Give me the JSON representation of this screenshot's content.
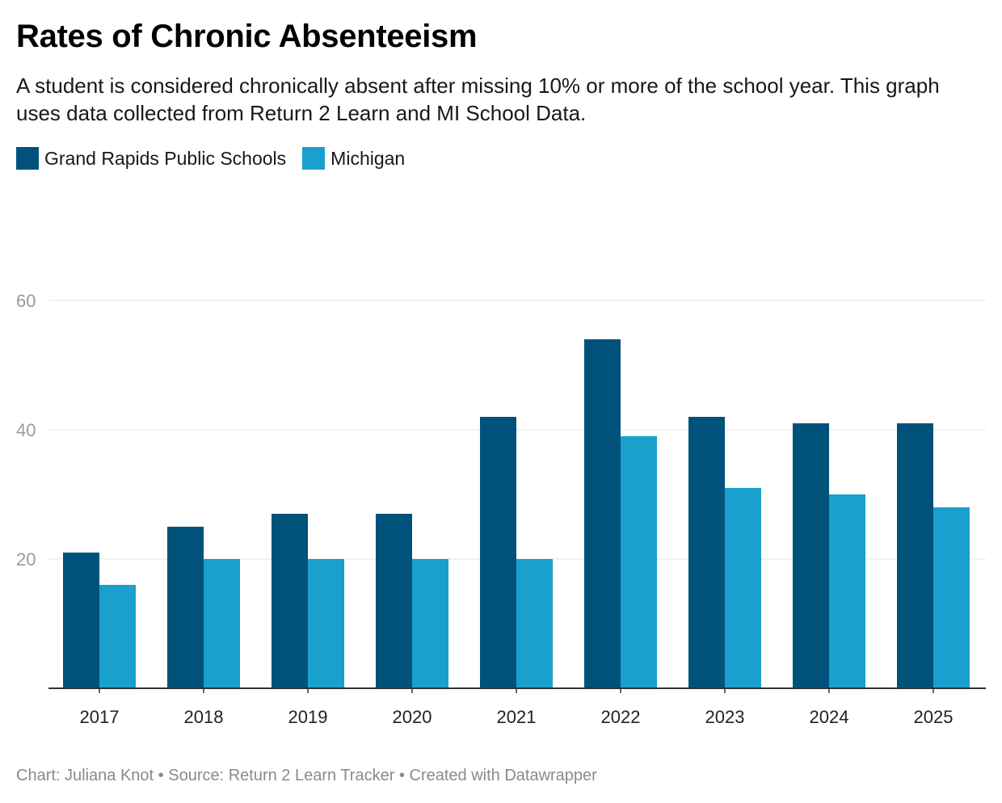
{
  "title": "Rates of Chronic Absenteeism",
  "subtitle": "A student is considered chronically absent after missing 10% or more of the school year. This graph uses data collected from Return 2 Learn and MI School Data.",
  "legend": [
    {
      "label": "Grand Rapids Public Schools",
      "color": "#00527a"
    },
    {
      "label": "Michigan",
      "color": "#1aa0cc"
    }
  ],
  "footer": {
    "credit": "Chart: Juliana Knot",
    "source": "Source: Return 2 Learn Tracker",
    "tool": "Created with Datawrapper",
    "separator": " • "
  },
  "chart_data": {
    "type": "bar",
    "title": "Rates of Chronic Absenteeism",
    "xlabel": "",
    "ylabel": "",
    "categories": [
      "2017",
      "2018",
      "2019",
      "2020",
      "2021",
      "2022",
      "2023",
      "2024",
      "2025"
    ],
    "series": [
      {
        "name": "Grand Rapids Public Schools",
        "color": "#00527a",
        "values": [
          21,
          25,
          27,
          27,
          42,
          54,
          42,
          41,
          41
        ]
      },
      {
        "name": "Michigan",
        "color": "#1aa0cc",
        "values": [
          16,
          20,
          20,
          20,
          20,
          39,
          31,
          30,
          28
        ]
      }
    ],
    "ylim": [
      0,
      60
    ],
    "yticks": [
      20,
      40,
      60
    ],
    "grid": true,
    "legend_position": "top-left"
  }
}
